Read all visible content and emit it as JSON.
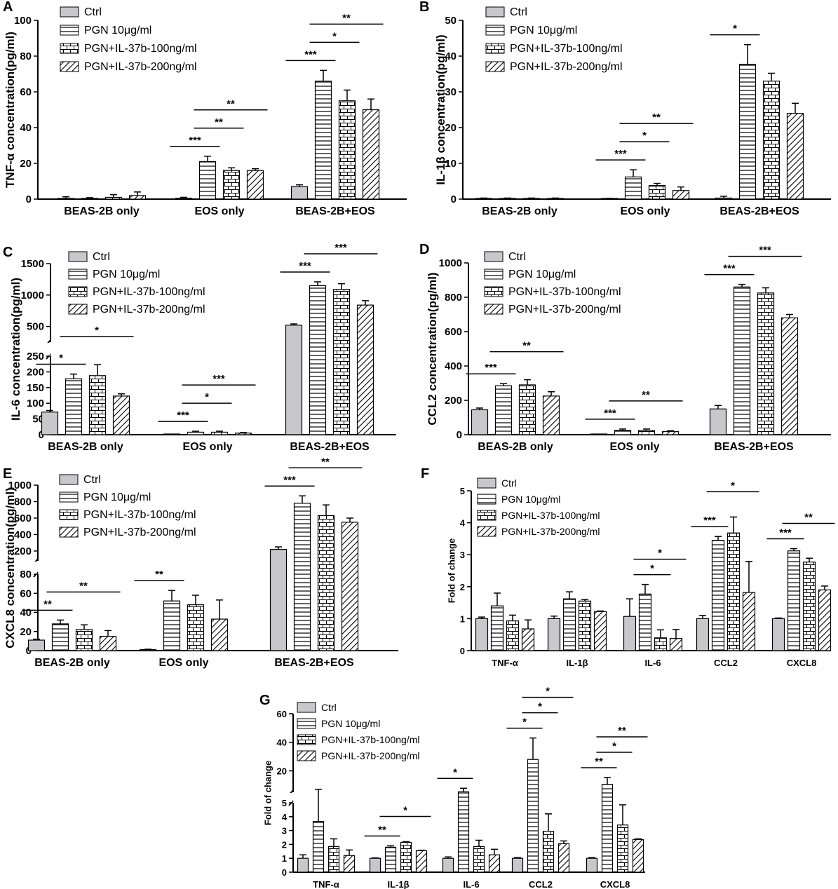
{
  "figure": {
    "legend_labels": [
      "Ctrl",
      "PGN 10μg/ml",
      "PGN+IL-37b-100ng/ml",
      "PGN+IL-37b-200ng/ml"
    ],
    "colors": {
      "ctrl_fill": "#c8c8cc",
      "line": "#000000",
      "pattern_bg": "#ffffff"
    }
  },
  "chart_data": [
    {
      "panel": "A",
      "type": "bar",
      "ylabel": "TNF-α concentration(pg/ml)",
      "ylim": [
        0,
        100
      ],
      "yticks": [
        0,
        20,
        40,
        60,
        80,
        100
      ],
      "categories": [
        "BEAS-2B only",
        "EOS only",
        "BEAS-2B+EOS"
      ],
      "series": [
        {
          "name": "Ctrl",
          "values": [
            0.3,
            0.5,
            7
          ],
          "err": [
            1,
            0.5,
            1
          ]
        },
        {
          "name": "PGN 10μg/ml",
          "values": [
            0.3,
            21,
            66
          ],
          "err": [
            0.5,
            3,
            6
          ]
        },
        {
          "name": "PGN+IL-37b-100ng/ml",
          "values": [
            1,
            16,
            55
          ],
          "err": [
            1.5,
            1.5,
            6
          ]
        },
        {
          "name": "PGN+IL-37b-200ng/ml",
          "values": [
            2,
            16,
            50
          ],
          "err": [
            2,
            1,
            6
          ]
        }
      ],
      "significance": [
        {
          "cat": 1,
          "from": 0,
          "to": 1,
          "label": "***"
        },
        {
          "cat": 1,
          "from": 1,
          "to": 2,
          "label": "**"
        },
        {
          "cat": 1,
          "from": 1,
          "to": 3,
          "label": "**"
        },
        {
          "cat": 2,
          "from": 0,
          "to": 1,
          "label": "***"
        },
        {
          "cat": 2,
          "from": 1,
          "to": 2,
          "label": "*"
        },
        {
          "cat": 2,
          "from": 1,
          "to": 3,
          "label": "**"
        }
      ]
    },
    {
      "panel": "B",
      "type": "bar",
      "ylabel": "IL-1β concentration(pg/ml)",
      "ylim": [
        0,
        50
      ],
      "yticks": [
        0,
        10,
        20,
        30,
        40,
        50
      ],
      "categories": [
        "BEAS-2B only",
        "EOS only",
        "BEAS-2B+EOS"
      ],
      "series": [
        {
          "name": "Ctrl",
          "values": [
            0.1,
            0.1,
            0.3
          ],
          "err": [
            0.2,
            0.1,
            0.5
          ]
        },
        {
          "name": "PGN 10μg/ml",
          "values": [
            0.1,
            6.2,
            37.7
          ],
          "err": [
            0.2,
            2,
            5.5
          ]
        },
        {
          "name": "PGN+IL-37b-100ng/ml",
          "values": [
            0.1,
            3.8,
            33
          ],
          "err": [
            0.2,
            0.6,
            2.2
          ]
        },
        {
          "name": "PGN+IL-37b-200ng/ml",
          "values": [
            0.1,
            2.4,
            24
          ],
          "err": [
            0.2,
            1,
            2.8
          ]
        }
      ],
      "significance": [
        {
          "cat": 1,
          "from": 0,
          "to": 1,
          "label": "***"
        },
        {
          "cat": 1,
          "from": 1,
          "to": 2,
          "label": "*"
        },
        {
          "cat": 1,
          "from": 1,
          "to": 3,
          "label": "**"
        },
        {
          "cat": 2,
          "from": 0,
          "to": 1,
          "label": "*"
        }
      ]
    },
    {
      "panel": "C",
      "type": "bar",
      "ylabel": "IL-6 concentration(pg/ml)",
      "broken_axis": {
        "lower": [
          0,
          250
        ],
        "upper": [
          250,
          1500
        ]
      },
      "yticks_lower": [
        0,
        50,
        100,
        150,
        200,
        250
      ],
      "yticks_upper": [
        500,
        1000,
        1500
      ],
      "categories": [
        "BEAS-2B only",
        "EOS only",
        "BEAS-2B+EOS"
      ],
      "series": [
        {
          "name": "Ctrl",
          "values": [
            72,
            0.5,
            520
          ],
          "err": [
            5,
            0.5,
            20
          ]
        },
        {
          "name": "PGN 10μg/ml",
          "values": [
            178,
            8,
            1150
          ],
          "err": [
            15,
            3,
            60
          ]
        },
        {
          "name": "PGN+IL-37b-100ng/ml",
          "values": [
            188,
            8,
            1090
          ],
          "err": [
            35,
            3,
            90
          ]
        },
        {
          "name": "PGN+IL-37b-200ng/ml",
          "values": [
            123,
            5,
            840
          ],
          "err": [
            7,
            2,
            70
          ]
        }
      ],
      "significance": [
        {
          "cat": 0,
          "from": 0,
          "to": 1,
          "label": "*"
        },
        {
          "cat": 0,
          "from": 1,
          "to": 3,
          "label": "*"
        },
        {
          "cat": 1,
          "from": 0,
          "to": 1,
          "label": "***"
        },
        {
          "cat": 1,
          "from": 1,
          "to": 2,
          "label": "*"
        },
        {
          "cat": 1,
          "from": 1,
          "to": 3,
          "label": "***"
        },
        {
          "cat": 2,
          "from": 0,
          "to": 1,
          "label": "***"
        },
        {
          "cat": 2,
          "from": 1,
          "to": 3,
          "label": "***"
        }
      ]
    },
    {
      "panel": "D",
      "type": "bar",
      "ylabel": "CCL2 concentration(pg/ml)",
      "ylim": [
        0,
        1000
      ],
      "yticks": [
        0,
        200,
        400,
        600,
        800,
        1000
      ],
      "categories": [
        "BEAS-2B only",
        "EOS only",
        "BEAS-2B+EOS"
      ],
      "series": [
        {
          "name": "Ctrl",
          "values": [
            145,
            1,
            150
          ],
          "err": [
            10,
            1,
            20
          ]
        },
        {
          "name": "PGN 10μg/ml",
          "values": [
            285,
            25,
            860
          ],
          "err": [
            12,
            8,
            15
          ]
        },
        {
          "name": "PGN+IL-37b-100ng/ml",
          "values": [
            290,
            25,
            825
          ],
          "err": [
            30,
            8,
            30
          ]
        },
        {
          "name": "PGN+IL-37b-200ng/ml",
          "values": [
            225,
            18,
            680
          ],
          "err": [
            25,
            5,
            20
          ]
        }
      ],
      "significance": [
        {
          "cat": 0,
          "from": 0,
          "to": 1,
          "label": "***"
        },
        {
          "cat": 0,
          "from": 1,
          "to": 3,
          "label": "**"
        },
        {
          "cat": 1,
          "from": 0,
          "to": 1,
          "label": "***"
        },
        {
          "cat": 1,
          "from": 1,
          "to": 3,
          "label": "**"
        },
        {
          "cat": 2,
          "from": 0,
          "to": 1,
          "label": "***"
        },
        {
          "cat": 2,
          "from": 1,
          "to": 3,
          "label": "***"
        }
      ]
    },
    {
      "panel": "E",
      "type": "bar",
      "ylabel": "CXCL8 concentration(pg/ml)",
      "broken_axis": {
        "lower": [
          0,
          80
        ],
        "upper": [
          80,
          1000
        ]
      },
      "yticks_lower": [
        0,
        20,
        40,
        60,
        80
      ],
      "yticks_upper": [
        200,
        400,
        600,
        800,
        1000
      ],
      "categories": [
        "BEAS-2B only",
        "EOS only",
        "BEAS-2B+EOS"
      ],
      "series": [
        {
          "name": "Ctrl",
          "values": [
            11,
            1,
            220
          ],
          "err": [
            1,
            0.5,
            30
          ]
        },
        {
          "name": "PGN 10μg/ml",
          "values": [
            28,
            52,
            780
          ],
          "err": [
            4,
            11,
            90
          ]
        },
        {
          "name": "PGN+IL-37b-100ng/ml",
          "values": [
            22,
            48,
            630
          ],
          "err": [
            5,
            10,
            130
          ]
        },
        {
          "name": "PGN+IL-37b-200ng/ml",
          "values": [
            15,
            33,
            550
          ],
          "err": [
            6,
            20,
            50
          ]
        }
      ],
      "significance": [
        {
          "cat": 0,
          "from": 0,
          "to": 1,
          "label": "**"
        },
        {
          "cat": 0,
          "from": 1,
          "to": 3,
          "label": "**"
        },
        {
          "cat": 1,
          "from": 0,
          "to": 1,
          "label": "**"
        },
        {
          "cat": 2,
          "from": 0,
          "to": 1,
          "label": "***"
        },
        {
          "cat": 2,
          "from": 1,
          "to": 3,
          "label": "**"
        }
      ]
    },
    {
      "panel": "F",
      "type": "bar",
      "ylabel": "Fold of change",
      "ylim": [
        0,
        5
      ],
      "yticks": [
        0,
        1,
        2,
        3,
        4,
        5
      ],
      "categories": [
        "TNF-α",
        "IL-1β",
        "IL-6",
        "CCL2",
        "CXCL8"
      ],
      "series": [
        {
          "name": "Ctrl",
          "values": [
            1,
            1,
            1.07,
            1,
            1
          ],
          "err": [
            0.05,
            0.08,
            0.55,
            0.1,
            0.02
          ]
        },
        {
          "name": "PGN 10μg/ml",
          "values": [
            1.4,
            1.62,
            1.77,
            3.45,
            3.12
          ],
          "err": [
            0.4,
            0.22,
            0.3,
            0.12,
            0.07
          ]
        },
        {
          "name": "PGN+IL-37b-100ng/ml",
          "values": [
            0.93,
            1.55,
            0.4,
            3.68,
            2.77
          ],
          "err": [
            0.18,
            0.05,
            0.25,
            0.5,
            0.12
          ]
        },
        {
          "name": "PGN+IL-37b-200ng/ml",
          "values": [
            0.68,
            1.22,
            0.38,
            1.82,
            1.9
          ],
          "err": [
            0.28,
            0.02,
            0.28,
            0.97,
            0.12
          ]
        }
      ],
      "significance": [
        {
          "cat": 2,
          "from": 1,
          "to": 2,
          "label": "*"
        },
        {
          "cat": 2,
          "from": 1,
          "to": 3,
          "label": "*"
        },
        {
          "cat": 3,
          "from": 0,
          "to": 1,
          "label": "***"
        },
        {
          "cat": 3,
          "from": 1,
          "to": 3,
          "label": "*"
        },
        {
          "cat": 4,
          "from": 0,
          "to": 1,
          "label": "***"
        },
        {
          "cat": 4,
          "from": 1,
          "to": 3,
          "label": "**"
        }
      ]
    },
    {
      "panel": "G",
      "type": "bar",
      "ylabel": "Fold of change",
      "broken_axis": {
        "lower": [
          0,
          5
        ],
        "upper": [
          5,
          60
        ]
      },
      "yticks_lower": [
        0,
        1,
        2,
        3,
        4,
        5
      ],
      "yticks_upper": [
        20,
        40,
        60
      ],
      "categories": [
        "TNF-α",
        "IL-1β",
        "IL-6",
        "CCL2",
        "CXCL8"
      ],
      "series": [
        {
          "name": "Ctrl",
          "values": [
            1,
            1,
            1,
            1,
            1
          ],
          "err": [
            0.25,
            0.03,
            0.1,
            0.05,
            0.05
          ]
        },
        {
          "name": "PGN 10μg/ml",
          "values": [
            3.65,
            1.8,
            5.3,
            28,
            10.5
          ],
          "err": [
            3.4,
            0.1,
            2.5,
            15,
            4.8
          ]
        },
        {
          "name": "PGN+IL-37b-100ng/ml",
          "values": [
            1.85,
            2.15,
            1.85,
            2.95,
            3.4
          ],
          "err": [
            0.55,
            0.05,
            0.45,
            1.25,
            1.45
          ]
        },
        {
          "name": "PGN+IL-37b-200ng/ml",
          "values": [
            1.2,
            1.55,
            1.25,
            2.05,
            2.35
          ],
          "err": [
            0.4,
            0.03,
            0.4,
            0.2,
            0.05
          ]
        }
      ],
      "significance": [
        {
          "cat": 1,
          "from": 0,
          "to": 1,
          "label": "**"
        },
        {
          "cat": 1,
          "from": 1,
          "to": 3,
          "label": "*"
        },
        {
          "cat": 2,
          "from": 0,
          "to": 1,
          "label": "*"
        },
        {
          "cat": 3,
          "from": 0,
          "to": 1,
          "label": "*"
        },
        {
          "cat": 3,
          "from": 1,
          "to": 2,
          "label": "*"
        },
        {
          "cat": 3,
          "from": 1,
          "to": 3,
          "label": "*"
        },
        {
          "cat": 4,
          "from": 0,
          "to": 1,
          "label": "**"
        },
        {
          "cat": 4,
          "from": 1,
          "to": 2,
          "label": "*"
        },
        {
          "cat": 4,
          "from": 1,
          "to": 3,
          "label": "**"
        }
      ]
    }
  ]
}
